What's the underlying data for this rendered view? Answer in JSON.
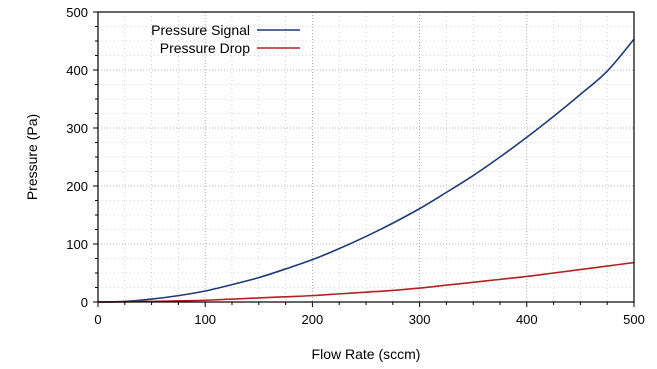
{
  "chart_data": {
    "type": "line",
    "xlabel": "Flow Rate (sccm)",
    "ylabel": "Pressure (Pa)",
    "xlim": [
      0,
      500
    ],
    "ylim": [
      0,
      500
    ],
    "x_ticks": [
      "0",
      "100",
      "200",
      "300",
      "400",
      "500"
    ],
    "y_ticks": [
      "0",
      "100",
      "200",
      "300",
      "400",
      "500"
    ],
    "grid": "dotted, major and minor",
    "legend_position": "top-left",
    "x": [
      0,
      25,
      50,
      75,
      100,
      125,
      150,
      175,
      200,
      225,
      250,
      275,
      300,
      325,
      350,
      375,
      400,
      425,
      450,
      475,
      500
    ],
    "series": [
      {
        "name": "Pressure Signal",
        "color": "#1f3a7a",
        "values": [
          0,
          1,
          5,
          11,
          19,
          30,
          42,
          57,
          73,
          92,
          113,
          136,
          161,
          189,
          218,
          250,
          284,
          320,
          358,
          398,
          453
        ]
      },
      {
        "name": "Pressure Drop",
        "color": "#b22222",
        "values": [
          0,
          0.3,
          1,
          2,
          3,
          5,
          7,
          9,
          11,
          14,
          17,
          20,
          24,
          29,
          34,
          39,
          44,
          50,
          56,
          62,
          68
        ]
      }
    ]
  }
}
